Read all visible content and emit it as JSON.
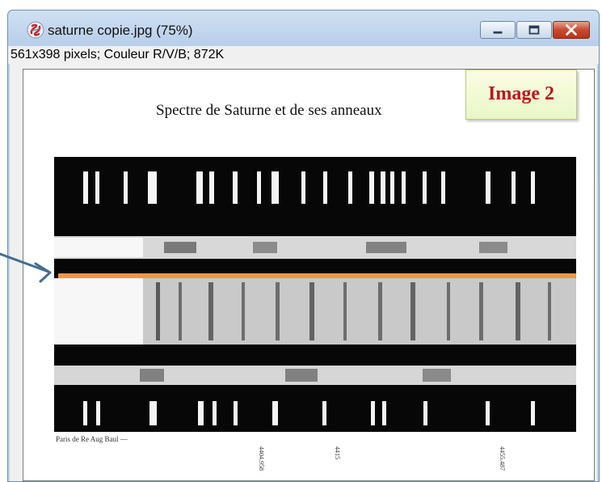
{
  "window": {
    "title": "saturne copie.jpg (75%)",
    "info": "561x398 pixels; Couleur R/V/B; 872K",
    "controls": {
      "minimize": "minimize-icon",
      "maximize": "maximize-icon",
      "close": "close-icon"
    }
  },
  "image": {
    "heading": "Spectre de Saturne et de ses anneaux",
    "footer_note": "Paris de Re Aug Baul —",
    "wavelength_labels": [
      "4404.958",
      "4415",
      "4455.487"
    ]
  },
  "overlay": {
    "caption": "Image 2",
    "line_color": "#f2954c",
    "arrow_color": "#3e6f96",
    "caption_color": "#c0151d"
  }
}
